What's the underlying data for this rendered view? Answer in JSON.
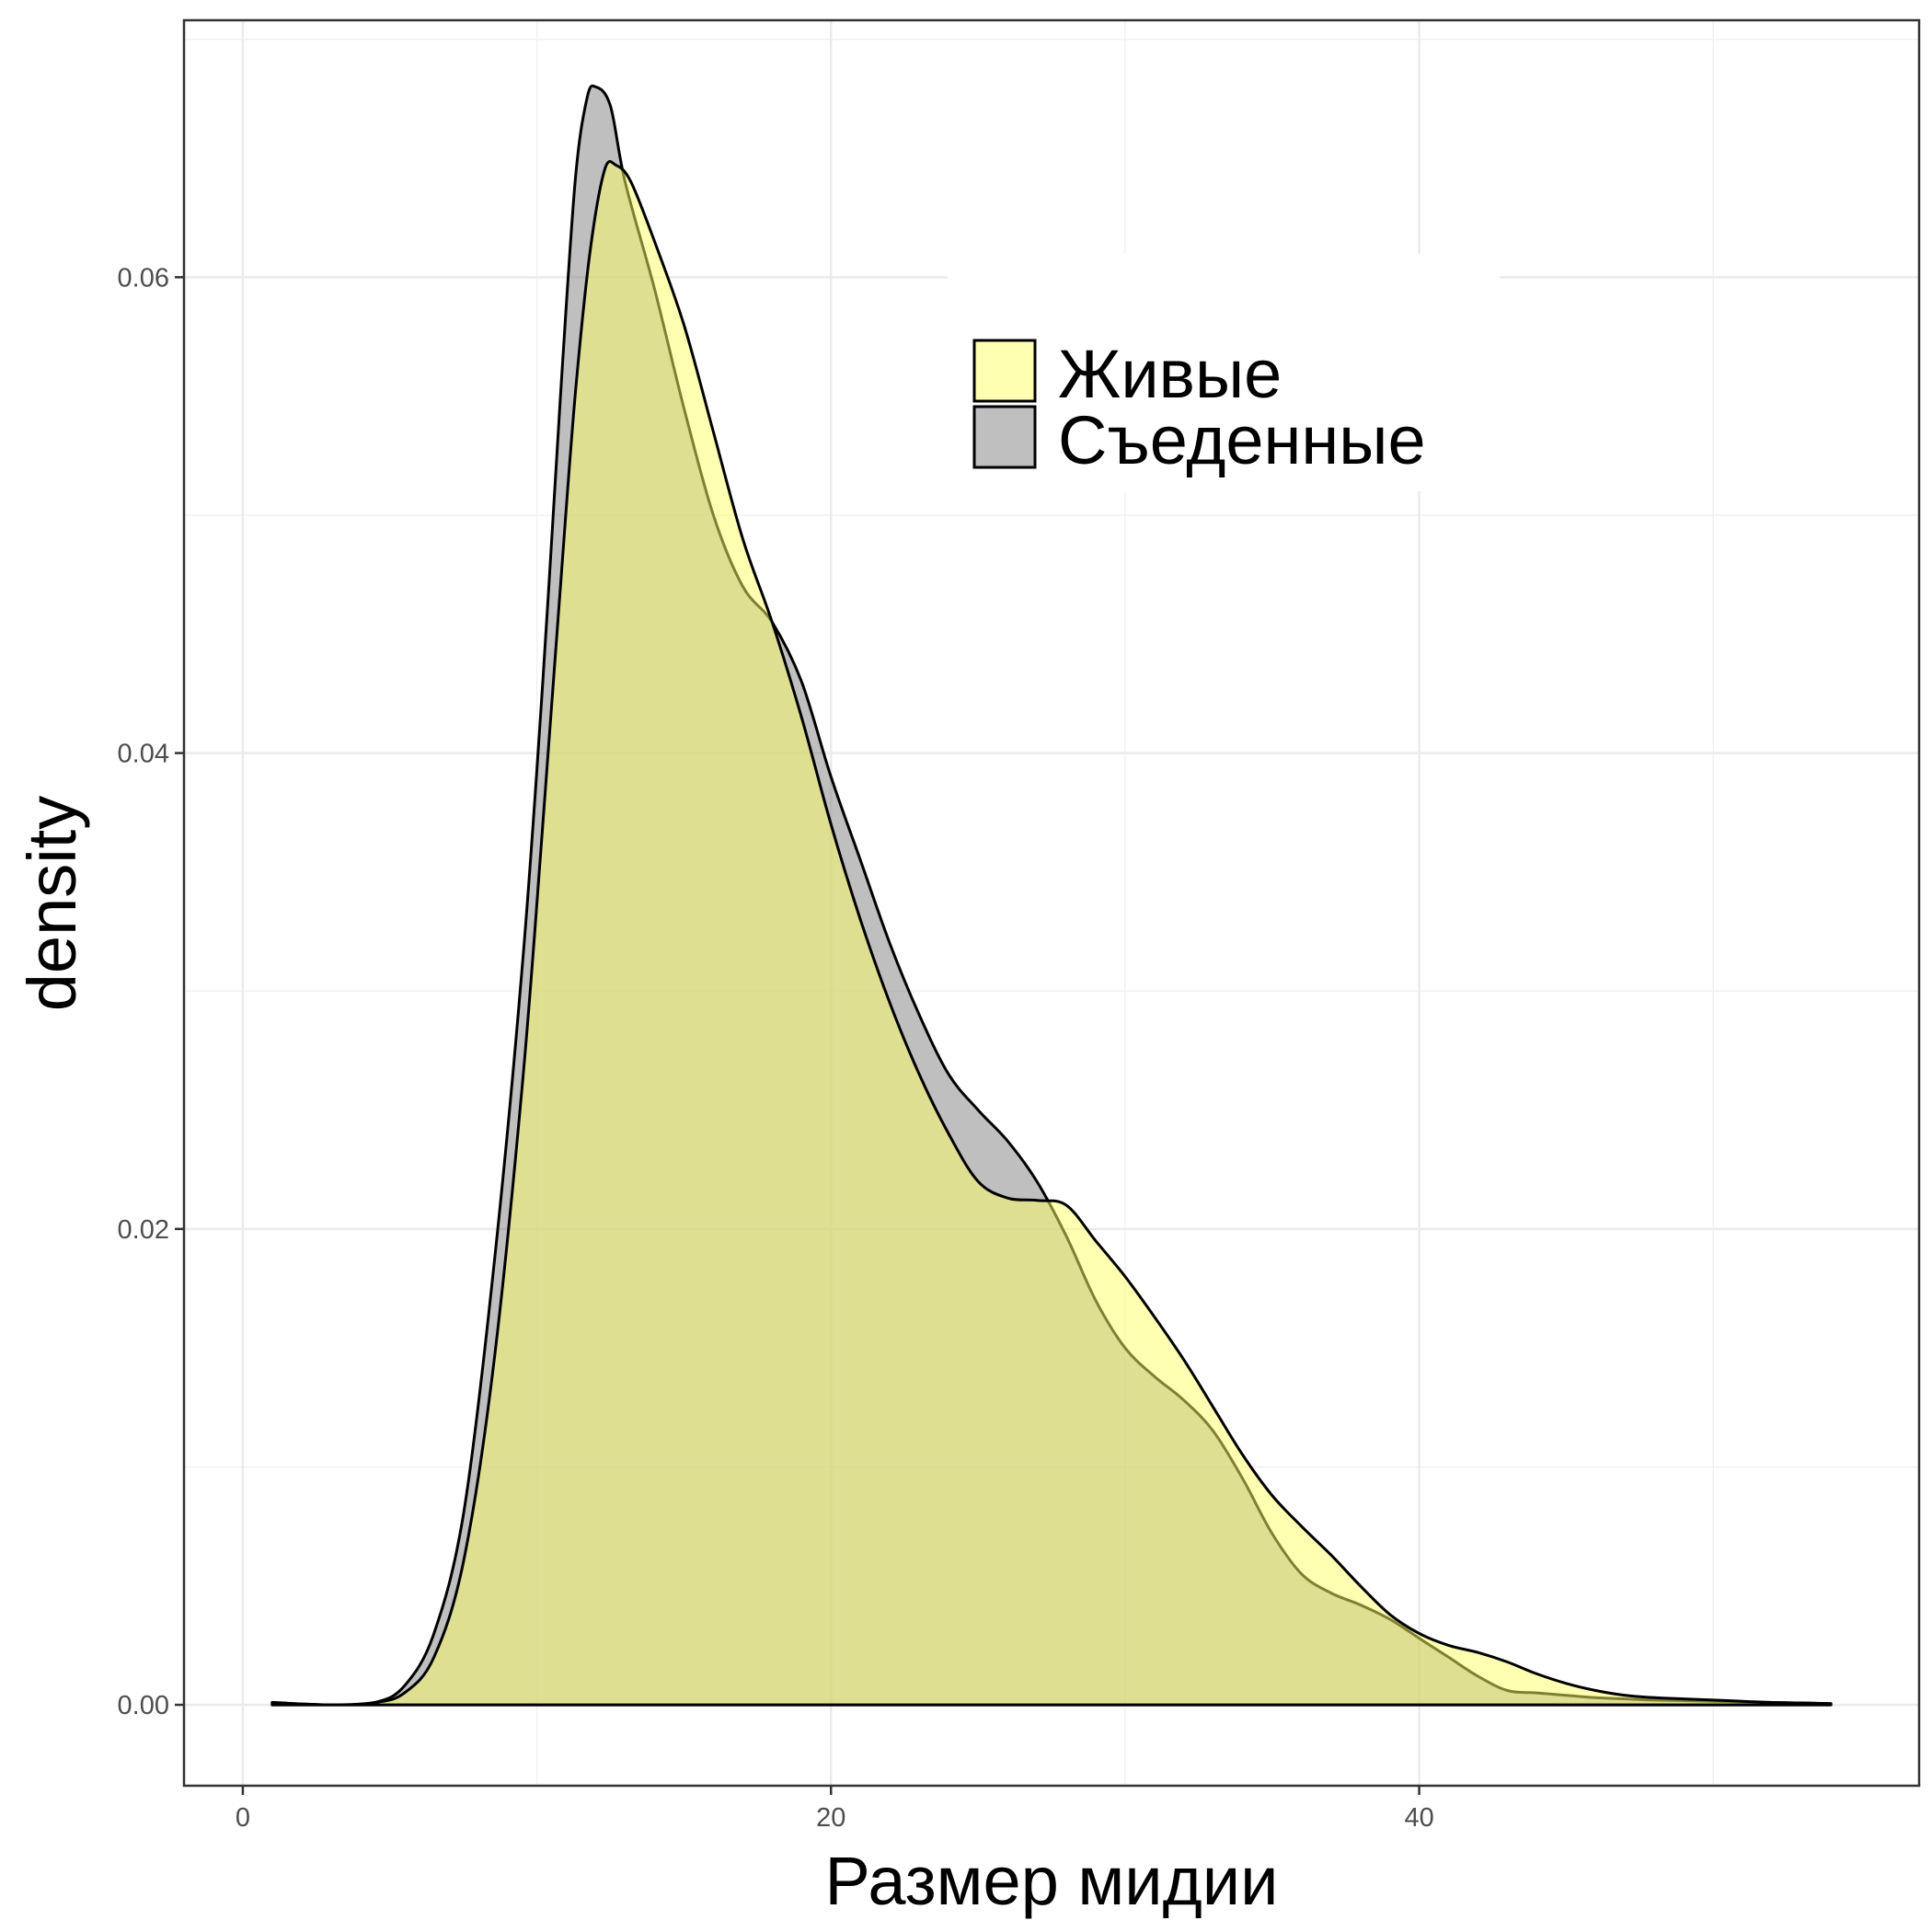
{
  "chart_data": {
    "type": "area",
    "subtype": "density",
    "xlabel": "Размер мидии",
    "ylabel": "density",
    "xlim": [
      -2,
      57
    ],
    "ylim": [
      -0.0034,
      0.0708
    ],
    "x_ticks": [
      0,
      20,
      40
    ],
    "x_tick_labels": [
      "0",
      "20",
      "40"
    ],
    "y_ticks": [
      0.0,
      0.02,
      0.04,
      0.06
    ],
    "y_tick_labels": [
      "0.00",
      "0.02",
      "0.04",
      "0.06"
    ],
    "grid": true,
    "legend": {
      "position": "upper-right-inside"
    },
    "series": [
      {
        "name": "Живые",
        "fill": "#ffff66",
        "points": [
          [
            1,
            0.0001
          ],
          [
            3,
            0
          ],
          [
            4.5,
            0.0001
          ],
          [
            5.5,
            0.0005
          ],
          [
            6.5,
            0.002
          ],
          [
            7.5,
            0.006
          ],
          [
            8.5,
            0.014
          ],
          [
            9.5,
            0.026
          ],
          [
            10.2,
            0.037
          ],
          [
            10.8,
            0.047
          ],
          [
            11.3,
            0.055
          ],
          [
            11.8,
            0.061
          ],
          [
            12.3,
            0.0645
          ],
          [
            12.7,
            0.0647
          ],
          [
            13.2,
            0.064
          ],
          [
            14,
            0.0615
          ],
          [
            15,
            0.058
          ],
          [
            16,
            0.0535
          ],
          [
            17,
            0.049
          ],
          [
            18,
            0.0455
          ],
          [
            19,
            0.0415
          ],
          [
            20,
            0.037
          ],
          [
            21,
            0.033
          ],
          [
            22,
            0.0295
          ],
          [
            23,
            0.0265
          ],
          [
            24,
            0.024
          ],
          [
            25,
            0.022
          ],
          [
            26,
            0.0213
          ],
          [
            27,
            0.0212
          ],
          [
            28,
            0.021
          ],
          [
            29,
            0.0195
          ],
          [
            30,
            0.018
          ],
          [
            31,
            0.0163
          ],
          [
            32,
            0.0145
          ],
          [
            33,
            0.0125
          ],
          [
            34,
            0.0105
          ],
          [
            35,
            0.0088
          ],
          [
            36,
            0.0075
          ],
          [
            37,
            0.0063
          ],
          [
            38,
            0.005
          ],
          [
            39,
            0.0038
          ],
          [
            40,
            0.003
          ],
          [
            41,
            0.0025
          ],
          [
            42,
            0.0022
          ],
          [
            43,
            0.0018
          ],
          [
            44,
            0.0013
          ],
          [
            45,
            0.0009
          ],
          [
            46,
            0.0006
          ],
          [
            47,
            0.0004
          ],
          [
            48,
            0.0003
          ],
          [
            49,
            0.00025
          ],
          [
            50,
            0.0002
          ],
          [
            51,
            0.00015
          ],
          [
            52,
            0.0001
          ],
          [
            53,
            8e-05
          ],
          [
            54,
            5e-05
          ]
        ]
      },
      {
        "name": "Съеденные",
        "fill": "#808080",
        "points": [
          [
            1,
            0.0001
          ],
          [
            3,
            0
          ],
          [
            4.5,
            0.0001
          ],
          [
            5.5,
            0.0008
          ],
          [
            6.5,
            0.003
          ],
          [
            7.5,
            0.008
          ],
          [
            8.5,
            0.018
          ],
          [
            9.5,
            0.031
          ],
          [
            10.2,
            0.043
          ],
          [
            10.8,
            0.055
          ],
          [
            11.3,
            0.064
          ],
          [
            11.7,
            0.0675
          ],
          [
            12,
            0.068
          ],
          [
            12.5,
            0.0672
          ],
          [
            13,
            0.064
          ],
          [
            14,
            0.0595
          ],
          [
            15,
            0.0545
          ],
          [
            16,
            0.05
          ],
          [
            17,
            0.047
          ],
          [
            18,
            0.0455
          ],
          [
            19,
            0.043
          ],
          [
            20,
            0.039
          ],
          [
            21,
            0.0355
          ],
          [
            22,
            0.032
          ],
          [
            23,
            0.029
          ],
          [
            24,
            0.0265
          ],
          [
            25,
            0.025
          ],
          [
            26,
            0.0237
          ],
          [
            27,
            0.022
          ],
          [
            28,
            0.0197
          ],
          [
            29,
            0.017
          ],
          [
            30,
            0.015
          ],
          [
            31,
            0.0138
          ],
          [
            32,
            0.0128
          ],
          [
            33,
            0.0115
          ],
          [
            34,
            0.0095
          ],
          [
            35,
            0.0072
          ],
          [
            36,
            0.0055
          ],
          [
            37,
            0.0047
          ],
          [
            38,
            0.0042
          ],
          [
            39,
            0.0036
          ],
          [
            40,
            0.0028
          ],
          [
            41,
            0.002
          ],
          [
            42,
            0.0012
          ],
          [
            43,
            0.0006
          ],
          [
            44,
            0.0005
          ],
          [
            45,
            0.0004
          ],
          [
            46,
            0.0003
          ],
          [
            47,
            0.00025
          ],
          [
            48,
            0.0002
          ],
          [
            50,
            0.00015
          ],
          [
            52,
            0.0001
          ],
          [
            54,
            5e-05
          ]
        ]
      }
    ]
  }
}
